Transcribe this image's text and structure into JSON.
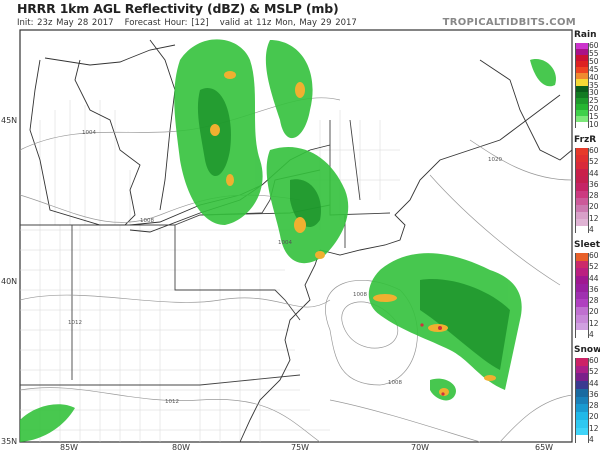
{
  "header": {
    "title": "HRRR 1km AGL Reflectivity (dBZ) & MSLP (mb)",
    "init": "Init: 23z May 28 2017",
    "forecast_hour": "Forecast Hour: [12]",
    "valid": "valid at 11z Mon, May 29 2017",
    "brand": "TROPICALTIDBITS.COM"
  },
  "axes": {
    "lat_labels": [
      "45N",
      "40N",
      "35N"
    ],
    "lon_labels": [
      "85W",
      "80W",
      "75W",
      "70W",
      "65W"
    ]
  },
  "isobars": [
    "1004",
    "1008",
    "1008",
    "1008",
    "1012",
    "1012",
    "1020",
    "1004"
  ],
  "legend": [
    {
      "name": "Rain",
      "ticks": [
        "60",
        "55",
        "50",
        "45",
        "40",
        "35",
        "30",
        "25",
        "20",
        "15",
        "10"
      ],
      "colors": [
        "#cc33cc",
        "#aa1188",
        "#cc1133",
        "#dd2222",
        "#ee4422",
        "#f08a30",
        "#f5d835",
        "#0a5c1a",
        "#137a22",
        "#1d9a2b",
        "#26b532",
        "#3fd04a",
        "#7de87a",
        "#ffffff"
      ]
    },
    {
      "name": "FrzR",
      "ticks": [
        "60",
        "52",
        "44",
        "36",
        "28",
        "20",
        "12",
        "4"
      ],
      "colors": [
        "#e63a2a",
        "#e03030",
        "#d92a3a",
        "#c9204a",
        "#c42050",
        "#c42566",
        "#cc3a80",
        "#cc5a99",
        "#cc7ab0",
        "#d8a0c8",
        "#e0b4d4",
        "#ffffff"
      ]
    },
    {
      "name": "Sleet",
      "ticks": [
        "60",
        "52",
        "44",
        "36",
        "28",
        "20",
        "12",
        "4"
      ],
      "colors": [
        "#e8602a",
        "#cc2a6a",
        "#bb2080",
        "#a01890",
        "#9a20a0",
        "#a030b0",
        "#b040c0",
        "#c070d0",
        "#c888d8",
        "#d0a0e0",
        "#ffffff"
      ]
    },
    {
      "name": "Snow",
      "ticks": [
        "60",
        "52",
        "44",
        "36",
        "28",
        "20",
        "12",
        "4"
      ],
      "colors": [
        "#cc2266",
        "#aa2088",
        "#7a208a",
        "#3a3a90",
        "#1a6aa0",
        "#1a80b8",
        "#1a9ad0",
        "#20b8e8",
        "#30c8f0",
        "#40d4f8",
        "#ffffff"
      ]
    }
  ]
}
